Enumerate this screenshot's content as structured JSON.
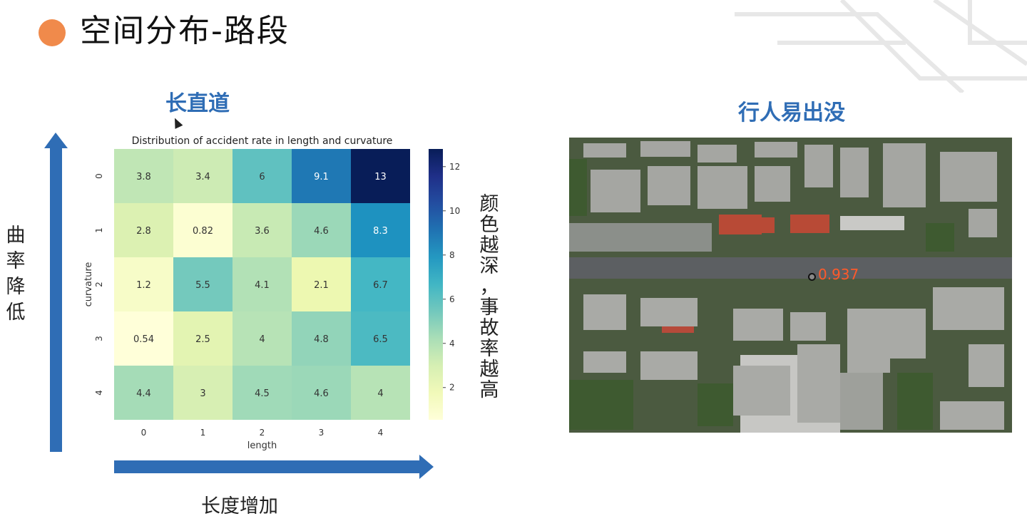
{
  "slide": {
    "title": "空间分布-路段",
    "bullet_color": "#f08a4b"
  },
  "left_heading": "长直道",
  "right_heading": "行人易出没",
  "annotations": {
    "y_arrow_label": [
      "曲",
      "率",
      "降",
      "低"
    ],
    "x_arrow_label": "长度增加",
    "colorbar_label": [
      "颜",
      "色",
      "越",
      "深",
      "，",
      "事",
      "故",
      "率",
      "越",
      "高"
    ]
  },
  "chart_data": {
    "type": "heatmap",
    "title": "Distribution of accident rate in length and curvature",
    "xlabel": "length",
    "ylabel": "curvature",
    "x_categories": [
      "0",
      "1",
      "2",
      "3",
      "4"
    ],
    "y_categories": [
      "0",
      "1",
      "2",
      "3",
      "4"
    ],
    "values": [
      [
        3.8,
        3.4,
        6,
        9.1,
        13
      ],
      [
        2.8,
        0.82,
        3.6,
        4.6,
        8.3
      ],
      [
        1.2,
        5.5,
        4.1,
        2.1,
        6.7
      ],
      [
        0.54,
        2.5,
        4,
        4.8,
        6.5
      ],
      [
        4.4,
        3,
        4.5,
        4.6,
        4
      ]
    ],
    "labels": [
      [
        "3.8",
        "3.4",
        "6",
        "9.1",
        "13"
      ],
      [
        "2.8",
        "0.82",
        "3.6",
        "4.6",
        "8.3"
      ],
      [
        "1.2",
        "5.5",
        "4.1",
        "2.1",
        "6.7"
      ],
      [
        "0.54",
        "2.5",
        "4",
        "4.8",
        "6.5"
      ],
      [
        "4.4",
        "3",
        "4.5",
        "4.6",
        "4"
      ]
    ],
    "colormap": "YlGnBu",
    "vmin": 0.54,
    "vmax": 13,
    "colorbar_ticks": [
      "2",
      "4",
      "6",
      "8",
      "10",
      "12"
    ]
  },
  "map": {
    "overlay_value": "0.937",
    "marker_color": "#ff5a2a"
  },
  "arrow_color": "#2f6db5"
}
